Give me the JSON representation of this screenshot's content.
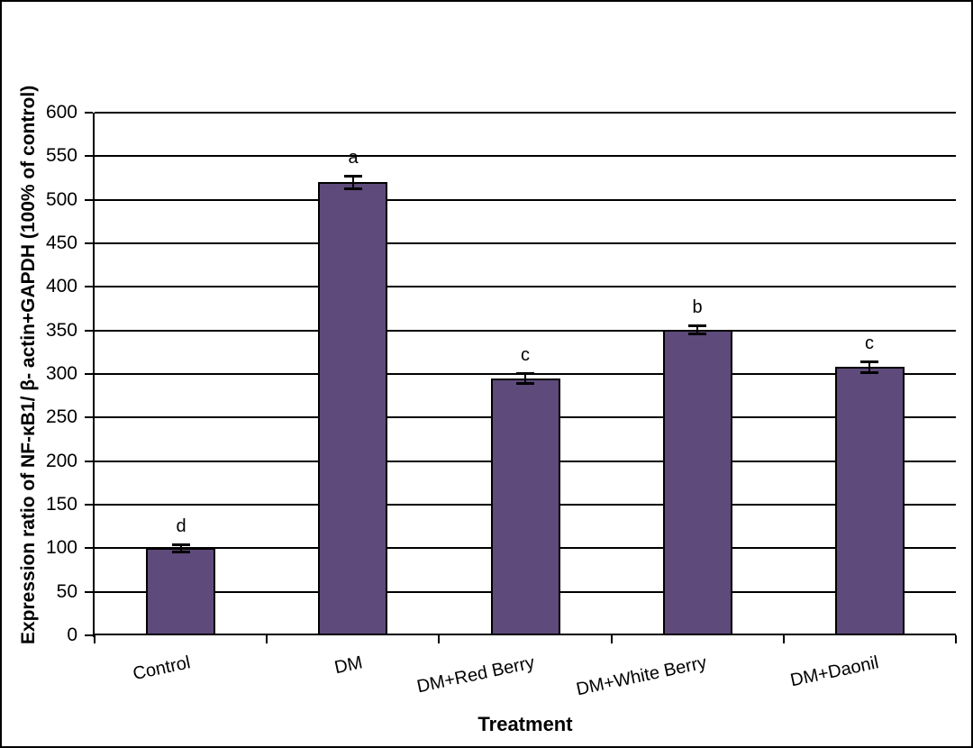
{
  "chart_data": {
    "type": "bar",
    "title": "",
    "xlabel": "Treatment",
    "ylabel": "Expression ratio of NF-κB1/ β- actin+GAPDH (100% of control)",
    "categories": [
      "Control",
      "DM",
      "DM+Red Berry",
      "DM+White Berry",
      "DM+Daonil"
    ],
    "values": [
      100,
      520,
      295,
      351,
      308
    ],
    "error_bars": [
      5,
      8,
      6,
      5,
      7
    ],
    "significance_letters": [
      "d",
      "a",
      "c",
      "b",
      "c"
    ],
    "ylim": [
      0,
      600
    ],
    "ytick_step": 50,
    "grid": true,
    "legend_position": "none",
    "bar_color": "#5E4A7B",
    "bar_border_color": "#000000",
    "axis_color": "#000000",
    "background_color": "#FFFFFF"
  }
}
